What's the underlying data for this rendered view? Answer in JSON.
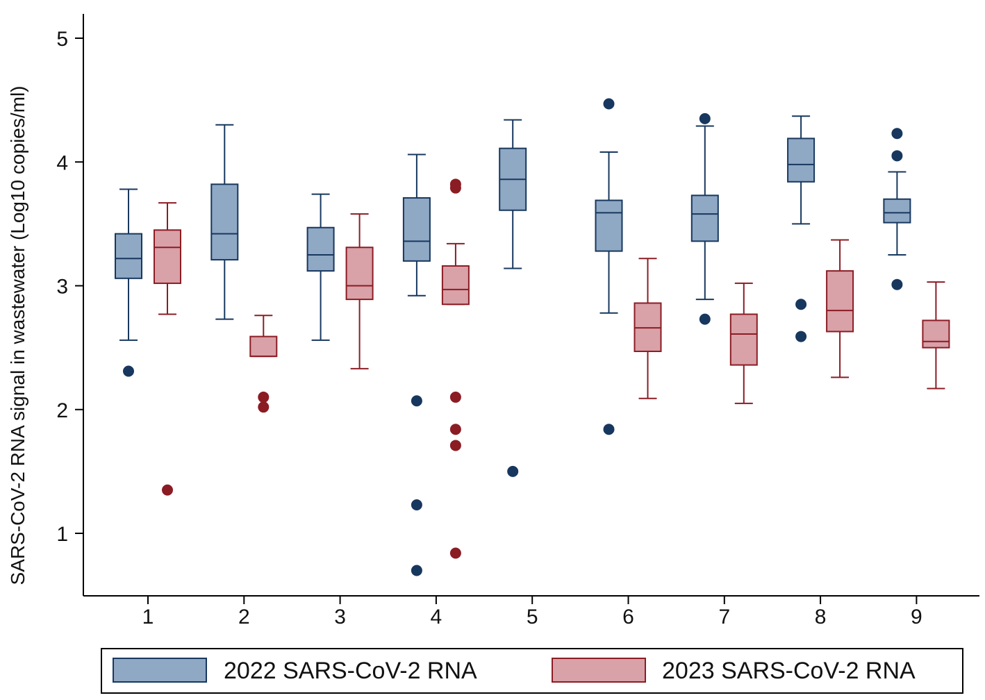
{
  "chart_data": {
    "type": "box",
    "title": "",
    "xlabel": "",
    "ylabel": "SARS-CoV-2 RNA signal in wastewater (Log10 copies/ml)",
    "ylim": [
      0.5,
      5.2
    ],
    "yticks": [
      1,
      2,
      3,
      4,
      5
    ],
    "categories": [
      "1",
      "2",
      "3",
      "4",
      "5",
      "6",
      "7",
      "8",
      "9"
    ],
    "legend_position": "bottom",
    "series": [
      {
        "name": "2022 SARS-CoV-2 RNA",
        "color": "#17375e",
        "fill": "#8fa8c4",
        "boxes": [
          {
            "category": "1",
            "whisker_low": 2.56,
            "q1": 3.06,
            "median": 3.22,
            "q3": 3.42,
            "whisker_high": 3.78,
            "outliers": [
              2.31
            ]
          },
          {
            "category": "2",
            "whisker_low": 2.73,
            "q1": 3.21,
            "median": 3.42,
            "q3": 3.82,
            "whisker_high": 4.3,
            "outliers": []
          },
          {
            "category": "3",
            "whisker_low": 2.56,
            "q1": 3.12,
            "median": 3.25,
            "q3": 3.47,
            "whisker_high": 3.74,
            "outliers": []
          },
          {
            "category": "4",
            "whisker_low": 2.92,
            "q1": 3.2,
            "median": 3.36,
            "q3": 3.71,
            "whisker_high": 4.06,
            "outliers": [
              2.07,
              1.23,
              0.7
            ]
          },
          {
            "category": "5",
            "whisker_low": 3.14,
            "q1": 3.61,
            "median": 3.86,
            "q3": 4.11,
            "whisker_high": 4.34,
            "outliers": [
              1.5
            ]
          },
          {
            "category": "6",
            "whisker_low": 2.78,
            "q1": 3.28,
            "median": 3.59,
            "q3": 3.69,
            "whisker_high": 4.08,
            "outliers": [
              4.47,
              1.84
            ]
          },
          {
            "category": "7",
            "whisker_low": 2.89,
            "q1": 3.36,
            "median": 3.58,
            "q3": 3.73,
            "whisker_high": 4.29,
            "outliers": [
              4.35,
              2.73
            ]
          },
          {
            "category": "8",
            "whisker_low": 3.5,
            "q1": 3.84,
            "median": 3.98,
            "q3": 4.19,
            "whisker_high": 4.37,
            "outliers": [
              2.85,
              2.59
            ]
          },
          {
            "category": "9",
            "whisker_low": 3.25,
            "q1": 3.51,
            "median": 3.59,
            "q3": 3.7,
            "whisker_high": 3.92,
            "outliers": [
              4.23,
              4.05,
              3.01
            ]
          }
        ]
      },
      {
        "name": "2023 SARS-CoV-2 RNA",
        "color": "#8b1c24",
        "fill": "#d9a1a8",
        "boxes": [
          {
            "category": "1",
            "whisker_low": 2.77,
            "q1": 3.02,
            "median": 3.31,
            "q3": 3.45,
            "whisker_high": 3.67,
            "outliers": [
              1.35
            ]
          },
          {
            "category": "2",
            "whisker_low": 2.43,
            "q1": 2.43,
            "median": 2.43,
            "q3": 2.59,
            "whisker_high": 2.76,
            "outliers": [
              2.1,
              2.02
            ]
          },
          {
            "category": "3",
            "whisker_low": 2.33,
            "q1": 2.89,
            "median": 3.0,
            "q3": 3.31,
            "whisker_high": 3.58,
            "outliers": []
          },
          {
            "category": "4",
            "whisker_low": 2.85,
            "q1": 2.85,
            "median": 2.97,
            "q3": 3.16,
            "whisker_high": 3.34,
            "outliers": [
              3.82,
              3.79,
              2.1,
              1.84,
              1.71,
              0.84
            ]
          },
          {
            "category": "6",
            "whisker_low": 2.09,
            "q1": 2.47,
            "median": 2.66,
            "q3": 2.86,
            "whisker_high": 3.22,
            "outliers": []
          },
          {
            "category": "7",
            "whisker_low": 2.05,
            "q1": 2.36,
            "median": 2.61,
            "q3": 2.77,
            "whisker_high": 3.02,
            "outliers": []
          },
          {
            "category": "8",
            "whisker_low": 2.26,
            "q1": 2.63,
            "median": 2.8,
            "q3": 3.12,
            "whisker_high": 3.37,
            "outliers": []
          },
          {
            "category": "9",
            "whisker_low": 2.17,
            "q1": 2.5,
            "median": 2.55,
            "q3": 2.72,
            "whisker_high": 3.03,
            "outliers": []
          }
        ]
      }
    ]
  }
}
